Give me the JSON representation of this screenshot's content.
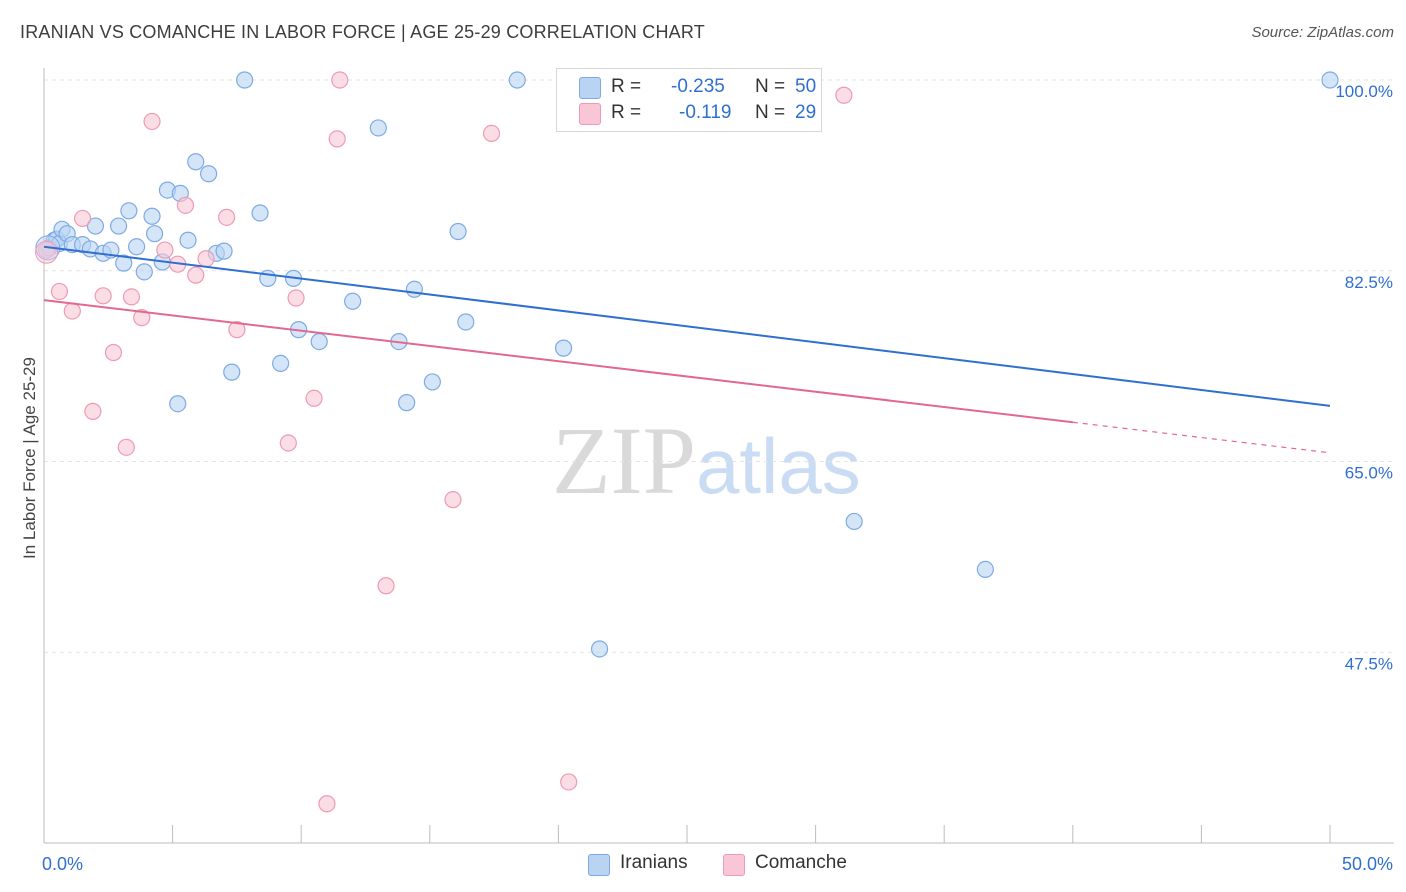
{
  "title": "IRANIAN VS COMANCHE IN LABOR FORCE | AGE 25-29 CORRELATION CHART",
  "source": "Source: ZipAtlas.com",
  "watermark": {
    "zip": "ZIP",
    "atlas": "atlas"
  },
  "legend": {
    "iranians": {
      "r_label": "R =",
      "r_value": "-0.235",
      "n_label": "N =",
      "n_value": "50"
    },
    "comanche": {
      "r_label": "R =",
      "r_value": "-0.119",
      "n_label": "N =",
      "n_value": "29"
    }
  },
  "bottom_legend": {
    "iranians": "Iranians",
    "comanche": "Comanche"
  },
  "colors": {
    "iranians_fill": "#b9d3f3",
    "iranians_stroke": "#7eaae3",
    "iranians_line": "#2f6fd0",
    "comanche_fill": "#f8c6d6",
    "comanche_stroke": "#ee9ab5",
    "comanche_line": "#e2688f",
    "tick_label": "#2f6fd0",
    "grid": "#e3e3e3"
  },
  "chart_data": {
    "type": "scatter",
    "title": "IRANIAN VS COMANCHE IN LABOR FORCE | AGE 25-29 CORRELATION CHART",
    "xlabel": "",
    "ylabel": "In Labor Force | Age 25-29",
    "xlim": [
      0,
      50
    ],
    "ylim": [
      30,
      102
    ],
    "x_tick_labels": [
      "0.0%",
      "50.0%"
    ],
    "y_ticks": [
      47.5,
      65.0,
      82.5,
      100.0
    ],
    "y_tick_labels": [
      "47.5%",
      "65.0%",
      "82.5%",
      "100.0%"
    ],
    "series": [
      {
        "name": "Iranians",
        "r": -0.235,
        "n": 50,
        "trend": {
          "x": [
            0,
            50
          ],
          "y": [
            84.7,
            70.1
          ]
        },
        "points": [
          {
            "x": 0.2,
            "y": 84.6
          },
          {
            "x": 0.4,
            "y": 85.3
          },
          {
            "x": 0.5,
            "y": 85.4
          },
          {
            "x": 0.6,
            "y": 85.0
          },
          {
            "x": 0.7,
            "y": 86.3
          },
          {
            "x": 0.9,
            "y": 85.9
          },
          {
            "x": 1.1,
            "y": 84.9
          },
          {
            "x": 1.5,
            "y": 84.9
          },
          {
            "x": 1.8,
            "y": 84.5
          },
          {
            "x": 2.0,
            "y": 86.6
          },
          {
            "x": 2.3,
            "y": 84.1
          },
          {
            "x": 2.6,
            "y": 84.4
          },
          {
            "x": 2.9,
            "y": 86.6
          },
          {
            "x": 3.1,
            "y": 83.2
          },
          {
            "x": 3.3,
            "y": 88.0
          },
          {
            "x": 3.6,
            "y": 84.7
          },
          {
            "x": 3.9,
            "y": 82.4
          },
          {
            "x": 4.2,
            "y": 87.5
          },
          {
            "x": 4.3,
            "y": 85.9
          },
          {
            "x": 4.6,
            "y": 83.3
          },
          {
            "x": 4.8,
            "y": 89.9
          },
          {
            "x": 5.2,
            "y": 70.3
          },
          {
            "x": 5.3,
            "y": 89.6
          },
          {
            "x": 5.6,
            "y": 85.3
          },
          {
            "x": 5.9,
            "y": 92.5
          },
          {
            "x": 6.4,
            "y": 91.4
          },
          {
            "x": 6.7,
            "y": 84.1
          },
          {
            "x": 7.0,
            "y": 84.3
          },
          {
            "x": 7.3,
            "y": 73.2
          },
          {
            "x": 7.8,
            "y": 100.0
          },
          {
            "x": 8.4,
            "y": 87.8
          },
          {
            "x": 8.7,
            "y": 81.8
          },
          {
            "x": 9.2,
            "y": 74.0
          },
          {
            "x": 9.7,
            "y": 81.8
          },
          {
            "x": 9.9,
            "y": 77.1
          },
          {
            "x": 10.7,
            "y": 76.0
          },
          {
            "x": 12.0,
            "y": 79.7
          },
          {
            "x": 13.0,
            "y": 95.6
          },
          {
            "x": 13.8,
            "y": 76.0
          },
          {
            "x": 14.1,
            "y": 70.4
          },
          {
            "x": 14.4,
            "y": 80.8
          },
          {
            "x": 15.1,
            "y": 72.3
          },
          {
            "x": 16.1,
            "y": 86.1
          },
          {
            "x": 16.4,
            "y": 77.8
          },
          {
            "x": 18.4,
            "y": 100.0
          },
          {
            "x": 20.2,
            "y": 75.4
          },
          {
            "x": 21.6,
            "y": 47.8
          },
          {
            "x": 31.5,
            "y": 59.5
          },
          {
            "x": 36.6,
            "y": 55.1
          },
          {
            "x": 50.0,
            "y": 100.0
          }
        ]
      },
      {
        "name": "Comanche",
        "r": -0.119,
        "n": 29,
        "trend": {
          "x": [
            0,
            40
          ],
          "y": [
            79.8,
            68.6
          ]
        },
        "trend_dashed": {
          "x": [
            40,
            50
          ],
          "y": [
            68.6,
            65.8
          ]
        },
        "points": [
          {
            "x": 0.1,
            "y": 84.4
          },
          {
            "x": 0.6,
            "y": 80.6
          },
          {
            "x": 1.1,
            "y": 78.8
          },
          {
            "x": 1.5,
            "y": 87.3
          },
          {
            "x": 1.9,
            "y": 69.6
          },
          {
            "x": 2.3,
            "y": 80.2
          },
          {
            "x": 2.7,
            "y": 75.0
          },
          {
            "x": 3.2,
            "y": 66.3
          },
          {
            "x": 3.4,
            "y": 80.1
          },
          {
            "x": 3.8,
            "y": 78.2
          },
          {
            "x": 4.2,
            "y": 96.2
          },
          {
            "x": 4.7,
            "y": 84.4
          },
          {
            "x": 5.2,
            "y": 83.1
          },
          {
            "x": 5.5,
            "y": 88.5
          },
          {
            "x": 5.9,
            "y": 82.1
          },
          {
            "x": 6.3,
            "y": 83.6
          },
          {
            "x": 7.1,
            "y": 87.4
          },
          {
            "x": 7.5,
            "y": 77.1
          },
          {
            "x": 9.5,
            "y": 66.7
          },
          {
            "x": 9.8,
            "y": 80.0
          },
          {
            "x": 10.5,
            "y": 70.8
          },
          {
            "x": 11.0,
            "y": 33.6
          },
          {
            "x": 11.5,
            "y": 100.0
          },
          {
            "x": 11.4,
            "y": 94.6
          },
          {
            "x": 13.3,
            "y": 53.6
          },
          {
            "x": 15.9,
            "y": 61.5
          },
          {
            "x": 17.4,
            "y": 95.1
          },
          {
            "x": 20.4,
            "y": 35.6
          },
          {
            "x": 31.1,
            "y": 98.6
          }
        ]
      }
    ]
  }
}
